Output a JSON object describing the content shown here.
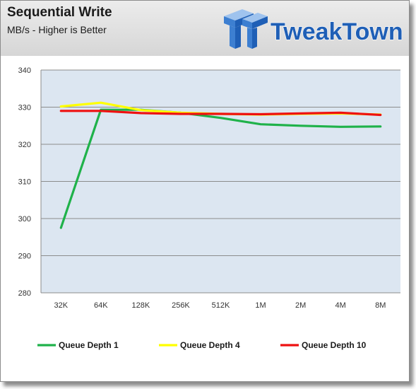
{
  "header": {
    "title": "Sequential  Write",
    "subtitle": "MB/s - Higher is Better",
    "logo_text": "TweakTown"
  },
  "colors": {
    "plot_bg": "#dce6f1",
    "grid": "#8c8c8c",
    "queue_depth_1": "#1fb24a",
    "queue_depth_4": "#ffff00",
    "queue_depth_10": "#ee1111",
    "logo_blue": "#1f5fb6"
  },
  "chart_data": {
    "type": "line",
    "title": "Sequential  Write",
    "subtitle": "MB/s - Higher is Better",
    "xlabel": "",
    "ylabel": "",
    "categories": [
      "32K",
      "64K",
      "128K",
      "256K",
      "512K",
      "1M",
      "2M",
      "4M",
      "8M"
    ],
    "ylim": [
      280,
      340
    ],
    "yticks": [
      280,
      290,
      300,
      310,
      320,
      330,
      340
    ],
    "grid": true,
    "legend_position": "bottom",
    "series": [
      {
        "name": "Queue Depth 1",
        "color": "#1fb24a",
        "values": [
          297.5,
          329.3,
          329.3,
          328.5,
          327.1,
          325.4,
          325.0,
          324.7,
          324.8
        ]
      },
      {
        "name": "Queue Depth 4",
        "color": "#ffff00",
        "values": [
          330.2,
          331.2,
          329.2,
          328.5,
          328.2,
          328.0,
          328.2,
          328.3,
          328.0
        ]
      },
      {
        "name": "Queue Depth 10",
        "color": "#ee1111",
        "values": [
          329.0,
          329.0,
          328.4,
          328.2,
          328.2,
          328.1,
          328.3,
          328.5,
          327.9
        ]
      }
    ]
  }
}
